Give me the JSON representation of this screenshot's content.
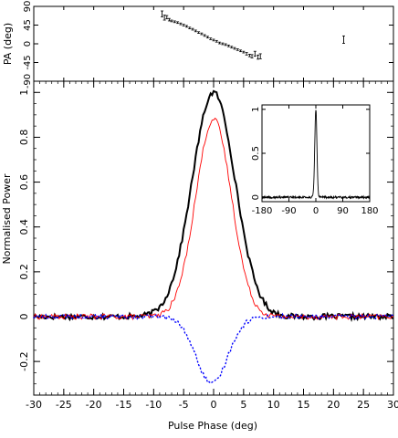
{
  "chart_data": [
    {
      "type": "scatter",
      "ylabel": "PA (deg)",
      "xlim": [
        -30,
        30
      ],
      "ylim": [
        -90,
        90
      ],
      "yticks": [
        -90,
        -45,
        0,
        45,
        90
      ],
      "points": [
        {
          "x": -8.6,
          "y": 72,
          "err": 7
        },
        {
          "x": -8.2,
          "y": 63,
          "err": 6
        },
        {
          "x": -7.8,
          "y": 64,
          "err": 4
        },
        {
          "x": -7.4,
          "y": 58,
          "err": 3
        },
        {
          "x": -7.0,
          "y": 55,
          "err": 2
        },
        {
          "x": -6.5,
          "y": 53,
          "err": 2
        },
        {
          "x": -6.0,
          "y": 51,
          "err": 2
        },
        {
          "x": -5.5,
          "y": 48,
          "err": 2
        },
        {
          "x": -5.0,
          "y": 45,
          "err": 2
        },
        {
          "x": -4.5,
          "y": 42,
          "err": 2
        },
        {
          "x": -4.0,
          "y": 38,
          "err": 2
        },
        {
          "x": -3.5,
          "y": 35,
          "err": 2
        },
        {
          "x": -3.0,
          "y": 31,
          "err": 2
        },
        {
          "x": -2.5,
          "y": 27,
          "err": 2
        },
        {
          "x": -2.0,
          "y": 24,
          "err": 2
        },
        {
          "x": -1.5,
          "y": 20,
          "err": 2
        },
        {
          "x": -1.0,
          "y": 16,
          "err": 2
        },
        {
          "x": -0.5,
          "y": 12,
          "err": 2
        },
        {
          "x": 0.0,
          "y": 9,
          "err": 2
        },
        {
          "x": 0.5,
          "y": 6,
          "err": 2
        },
        {
          "x": 1.0,
          "y": 2,
          "err": 2
        },
        {
          "x": 1.5,
          "y": 0,
          "err": 2
        },
        {
          "x": 2.0,
          "y": -2,
          "err": 2
        },
        {
          "x": 2.5,
          "y": -5,
          "err": 2
        },
        {
          "x": 3.0,
          "y": -8,
          "err": 2
        },
        {
          "x": 3.5,
          "y": -11,
          "err": 2
        },
        {
          "x": 4.0,
          "y": -14,
          "err": 2
        },
        {
          "x": 4.5,
          "y": -17,
          "err": 2
        },
        {
          "x": 5.0,
          "y": -20,
          "err": 2
        },
        {
          "x": 5.5,
          "y": -24,
          "err": 3
        },
        {
          "x": 6.0,
          "y": -28,
          "err": 3
        },
        {
          "x": 6.4,
          "y": -30,
          "err": 4
        },
        {
          "x": 6.9,
          "y": -24,
          "err": 6
        },
        {
          "x": 7.4,
          "y": -32,
          "err": 5
        },
        {
          "x": 7.8,
          "y": -30,
          "err": 6
        },
        {
          "x": 21.7,
          "y": 10,
          "err": 9
        }
      ]
    },
    {
      "type": "line",
      "xlabel": "Pulse Phase (deg)",
      "ylabel": "Normalised Power",
      "xlim": [
        -30,
        30
      ],
      "ylim": [
        -0.35,
        1.05
      ],
      "xticks": [
        -30,
        -25,
        -20,
        -15,
        -10,
        -5,
        0,
        5,
        10,
        15,
        20,
        25,
        30
      ],
      "yticks": [
        -0.2,
        0,
        0.2,
        0.4,
        0.6,
        0.8,
        1
      ],
      "ytick_labels": [
        "-0.2",
        "0",
        "0.2",
        "0.4",
        "0.6",
        "0.8",
        "1"
      ],
      "series": [
        {
          "style": "total-intensity",
          "color": "#000000",
          "peak": 1.0,
          "center": 0,
          "width": 3.6,
          "noise": 0.012
        },
        {
          "style": "linear-polarization",
          "color": "#ff0000",
          "peak": 0.88,
          "center": 0,
          "width": 3.0,
          "noise": 0.012
        },
        {
          "style": "circular-polarization",
          "color": "#0000ff",
          "peak": -0.3,
          "center": -0.3,
          "width": 2.6,
          "noise": 0.01
        }
      ]
    },
    {
      "type": "line",
      "panel": "inset",
      "xlim": [
        -180,
        180
      ],
      "ylim": [
        -0.05,
        1.05
      ],
      "xticks": [
        -180,
        -90,
        0,
        90,
        180
      ],
      "yticks": [
        0,
        0.5,
        1
      ],
      "ytick_labels": [
        "0",
        "0.5",
        "1"
      ],
      "series": [
        {
          "style": "total-intensity",
          "color": "#000000",
          "peak": 1.0,
          "center": 0,
          "width": 3.6,
          "noise": 0.012
        }
      ]
    }
  ]
}
